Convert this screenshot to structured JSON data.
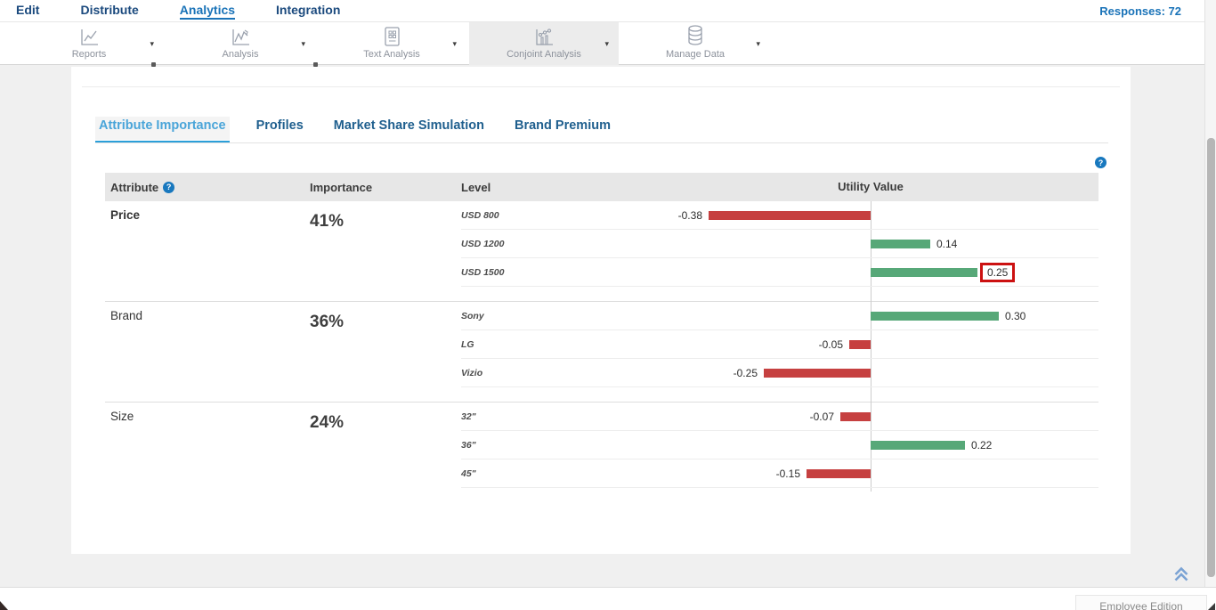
{
  "menu": {
    "items": [
      {
        "label": "Edit",
        "active": false
      },
      {
        "label": "Distribute",
        "active": false
      },
      {
        "label": "Analytics",
        "active": true
      },
      {
        "label": "Integration",
        "active": false
      }
    ],
    "responses_label": "Responses: 72"
  },
  "toolbar": {
    "items": [
      {
        "label": "Reports",
        "icon": "reports-chart-icon",
        "selected": false
      },
      {
        "label": "Analysis",
        "icon": "analysis-chart-icon",
        "selected": false
      },
      {
        "label": "Text Analysis",
        "icon": "text-analysis-icon",
        "selected": false
      },
      {
        "label": "Conjoint Analysis",
        "icon": "conjoint-analysis-icon",
        "selected": true
      },
      {
        "label": "Manage Data",
        "icon": "database-icon",
        "selected": false
      }
    ]
  },
  "tabs": [
    {
      "label": "Attribute Importance",
      "active": true
    },
    {
      "label": "Profiles",
      "active": false
    },
    {
      "label": "Market Share Simulation",
      "active": false
    },
    {
      "label": "Brand Premium",
      "active": false
    }
  ],
  "table": {
    "headers": {
      "attribute": "Attribute",
      "importance": "Importance",
      "level": "Level",
      "utility": "Utility Value"
    },
    "attribute_help_icon": "question-mark-icon",
    "chart_help_icon": "question-mark-icon"
  },
  "chart_data": {
    "type": "bar",
    "orientation": "horizontal",
    "title": "Attribute Importance",
    "value_axis": {
      "zero_line_at": 0,
      "grid": false
    },
    "legend": "none",
    "groups": [
      {
        "attribute": "Price",
        "importance": "41%",
        "bold": true,
        "levels": [
          {
            "label": "USD 800",
            "value": -0.38,
            "value_label": "-0.38",
            "highlighted": false
          },
          {
            "label": "USD 1200",
            "value": 0.14,
            "value_label": "0.14",
            "highlighted": false
          },
          {
            "label": "USD 1500",
            "value": 0.25,
            "value_label": "0.25",
            "highlighted": true
          }
        ]
      },
      {
        "attribute": "Brand",
        "importance": "36%",
        "bold": false,
        "levels": [
          {
            "label": "Sony",
            "value": 0.3,
            "value_label": "0.30",
            "highlighted": false
          },
          {
            "label": "LG",
            "value": -0.05,
            "value_label": "-0.05",
            "highlighted": false
          },
          {
            "label": "Vizio",
            "value": -0.25,
            "value_label": "-0.25",
            "highlighted": false
          }
        ]
      },
      {
        "attribute": "Size",
        "importance": "24%",
        "bold": false,
        "levels": [
          {
            "label": "32\"",
            "value": -0.07,
            "value_label": "-0.07",
            "highlighted": false
          },
          {
            "label": "36\"",
            "value": 0.22,
            "value_label": "0.22",
            "highlighted": false
          },
          {
            "label": "45\"",
            "value": -0.15,
            "value_label": "-0.15",
            "highlighted": false
          }
        ]
      }
    ]
  },
  "footer": {
    "edition_label": "Employee Edition"
  },
  "colors": {
    "positive_bar": "#57a878",
    "negative_bar": "#c64040",
    "annotation_box": "#cc1111",
    "accent_blue": "#2b9fd9",
    "menu_blue": "#1b4a7e"
  }
}
